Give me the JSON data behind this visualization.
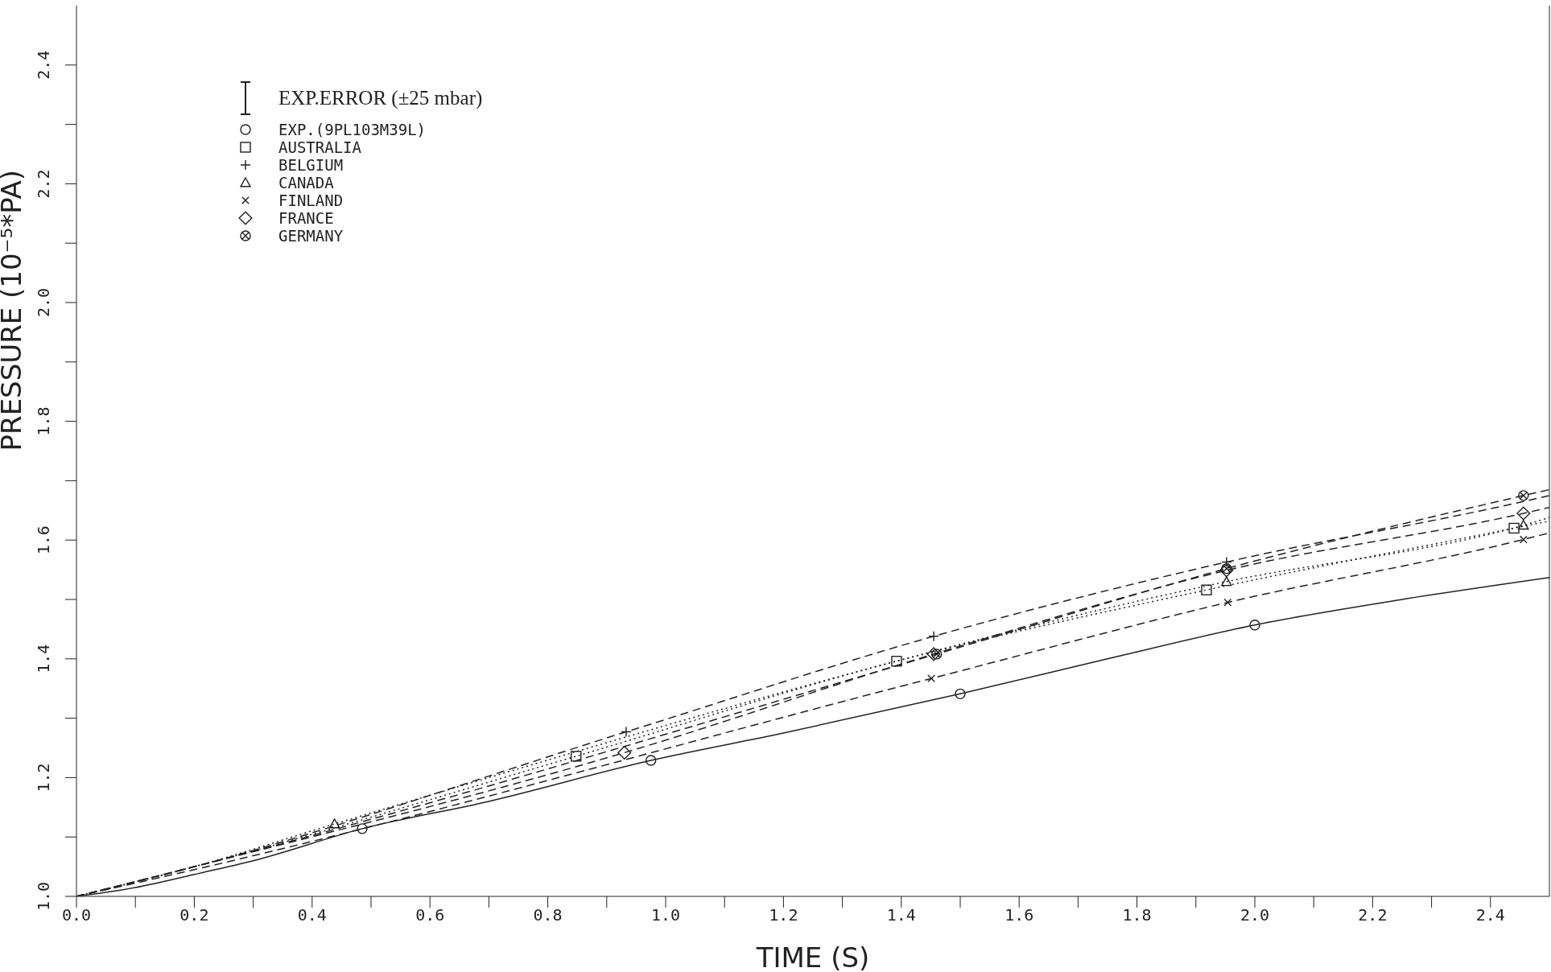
{
  "chart_data": {
    "type": "line",
    "xlabel": "TIME (S)",
    "ylabel": "PRESSURE (10⁻⁵*PA)",
    "xlim": [
      0,
      2.5
    ],
    "ylim": [
      1.0,
      2.5
    ],
    "xticks": [
      {
        "value": 0,
        "label": "0.0"
      },
      {
        "value": 0.1,
        "label": null
      },
      {
        "value": 0.2,
        "label": "0.2"
      },
      {
        "value": 0.3,
        "label": null
      },
      {
        "value": 0.4,
        "label": "0.4"
      },
      {
        "value": 0.5,
        "label": null
      },
      {
        "value": 0.6,
        "label": "0.6"
      },
      {
        "value": 0.7,
        "label": null
      },
      {
        "value": 0.8,
        "label": "0.8"
      },
      {
        "value": 0.9,
        "label": null
      },
      {
        "value": 1.0,
        "label": "1.0"
      },
      {
        "value": 1.1,
        "label": null
      },
      {
        "value": 1.2,
        "label": "1.2"
      },
      {
        "value": 1.3,
        "label": null
      },
      {
        "value": 1.4,
        "label": "1.4"
      },
      {
        "value": 1.5,
        "label": null
      },
      {
        "value": 1.6,
        "label": "1.6"
      },
      {
        "value": 1.7,
        "label": null
      },
      {
        "value": 1.8,
        "label": "1.8"
      },
      {
        "value": 1.9,
        "label": null
      },
      {
        "value": 2.0,
        "label": "2.0"
      },
      {
        "value": 2.1,
        "label": null
      },
      {
        "value": 2.2,
        "label": "2.2"
      },
      {
        "value": 2.3,
        "label": null
      },
      {
        "value": 2.4,
        "label": "2.4"
      }
    ],
    "yticks": [
      {
        "value": 1.0,
        "label": "1.0"
      },
      {
        "value": 1.1,
        "label": null
      },
      {
        "value": 1.2,
        "label": "1.2"
      },
      {
        "value": 1.3,
        "label": null
      },
      {
        "value": 1.4,
        "label": "1.4"
      },
      {
        "value": 1.5,
        "label": null
      },
      {
        "value": 1.6,
        "label": "1.6"
      },
      {
        "value": 1.7,
        "label": null
      },
      {
        "value": 1.8,
        "label": "1.8"
      },
      {
        "value": 1.9,
        "label": null
      },
      {
        "value": 2.0,
        "label": "2.0"
      },
      {
        "value": 2.1,
        "label": null
      },
      {
        "value": 2.2,
        "label": "2.2"
      },
      {
        "value": 2.3,
        "label": null
      },
      {
        "value": 2.4,
        "label": "2.4"
      }
    ],
    "grid": false,
    "legend": "top left",
    "annotations": [
      "EXP.ERROR (±25 mbar)"
    ],
    "series": [
      {
        "color": "#222222",
        "line_style": "solid",
        "x": [
          0,
          0.1,
          0.2,
          0.3,
          0.485,
          0.7,
          0.975,
          1.2,
          1.5,
          1.75,
          2.0,
          2.25,
          2.5
        ],
        "values": [
          1.0,
          1.015,
          1.037,
          1.06,
          1.114,
          1.16,
          1.229,
          1.275,
          1.341,
          1.4,
          1.457,
          1.5,
          1.537
        ]
      },
      {
        "color": "#222222",
        "line_style": "dotted",
        "x": [
          0,
          0.2,
          0.848,
          1.392,
          1.918,
          2.44,
          2.5
        ],
        "values": [
          1.0,
          1.05,
          1.236,
          1.396,
          1.516,
          1.62,
          1.632
        ]
      },
      {
        "color": "#222222",
        "line_style": "dashed",
        "x": [
          0,
          0.2,
          0.933,
          1.455,
          1.952,
          2.456,
          2.5
        ],
        "values": [
          1.0,
          1.05,
          1.277,
          1.438,
          1.563,
          1.665,
          1.675
        ]
      },
      {
        "color": "#222222",
        "line_style": "dotted",
        "x": [
          0,
          0.2,
          0.438,
          1.952,
          2.456,
          2.5
        ],
        "values": [
          1.0,
          1.05,
          1.122,
          1.53,
          1.625,
          1.638
        ]
      },
      {
        "color": "#222222",
        "line_style": "dashed",
        "x": [
          0,
          0.2,
          1.451,
          1.954,
          2.456,
          2.5
        ],
        "values": [
          1.0,
          1.045,
          1.367,
          1.495,
          1.601,
          1.612
        ]
      },
      {
        "color": "#222222",
        "line_style": "dashed",
        "x": [
          0,
          0.2,
          0.93,
          1.455,
          1.952,
          2.456,
          2.5
        ],
        "values": [
          1.0,
          1.05,
          1.242,
          1.408,
          1.549,
          1.645,
          1.655
        ]
      },
      {
        "color": "#222222",
        "line_style": "dashed",
        "x": [
          0,
          0.2,
          1.46,
          1.952,
          2.456,
          2.5
        ],
        "values": [
          1.0,
          1.05,
          1.408,
          1.552,
          1.675,
          1.685
        ]
      },
      {
        "type": "scatter",
        "name": "EXP.(9PL103M39L)",
        "color": "#222222",
        "marker": "circle",
        "x": [
          0.485,
          0.975,
          1.5,
          2.0
        ],
        "values": [
          1.114,
          1.229,
          1.341,
          1.457
        ]
      },
      {
        "type": "scatter",
        "name": "AUSTRALIA",
        "color": "#222222",
        "marker": "square",
        "x": [
          0.848,
          1.392,
          1.918,
          2.44
        ],
        "values": [
          1.236,
          1.396,
          1.516,
          1.62
        ]
      },
      {
        "type": "scatter",
        "name": "BELGIUM",
        "color": "#222222",
        "marker": "cross",
        "x": [
          0.933,
          1.455,
          1.952
        ],
        "values": [
          1.277,
          1.438,
          1.563
        ]
      },
      {
        "type": "scatter",
        "name": "CANADA",
        "color": "#222222",
        "marker": "triangle",
        "x": [
          0.438,
          1.952,
          2.456
        ],
        "values": [
          1.122,
          1.53,
          1.625
        ]
      },
      {
        "type": "scatter",
        "name": "FINLAND",
        "color": "#222222",
        "marker": "x",
        "x": [
          1.451,
          1.954,
          2.456
        ],
        "values": [
          1.367,
          1.495,
          1.601
        ]
      },
      {
        "type": "scatter",
        "name": "FRANCE",
        "color": "#222222",
        "marker": "diamond",
        "x": [
          0.93,
          1.455,
          1.952,
          2.456
        ],
        "values": [
          1.242,
          1.408,
          1.549,
          1.645
        ]
      },
      {
        "type": "scatter",
        "name": "GERMANY",
        "color": "#222222",
        "marker": "circle-x",
        "x": [
          1.46,
          1.952,
          2.456
        ],
        "values": [
          1.408,
          1.552,
          1.675
        ]
      }
    ]
  }
}
